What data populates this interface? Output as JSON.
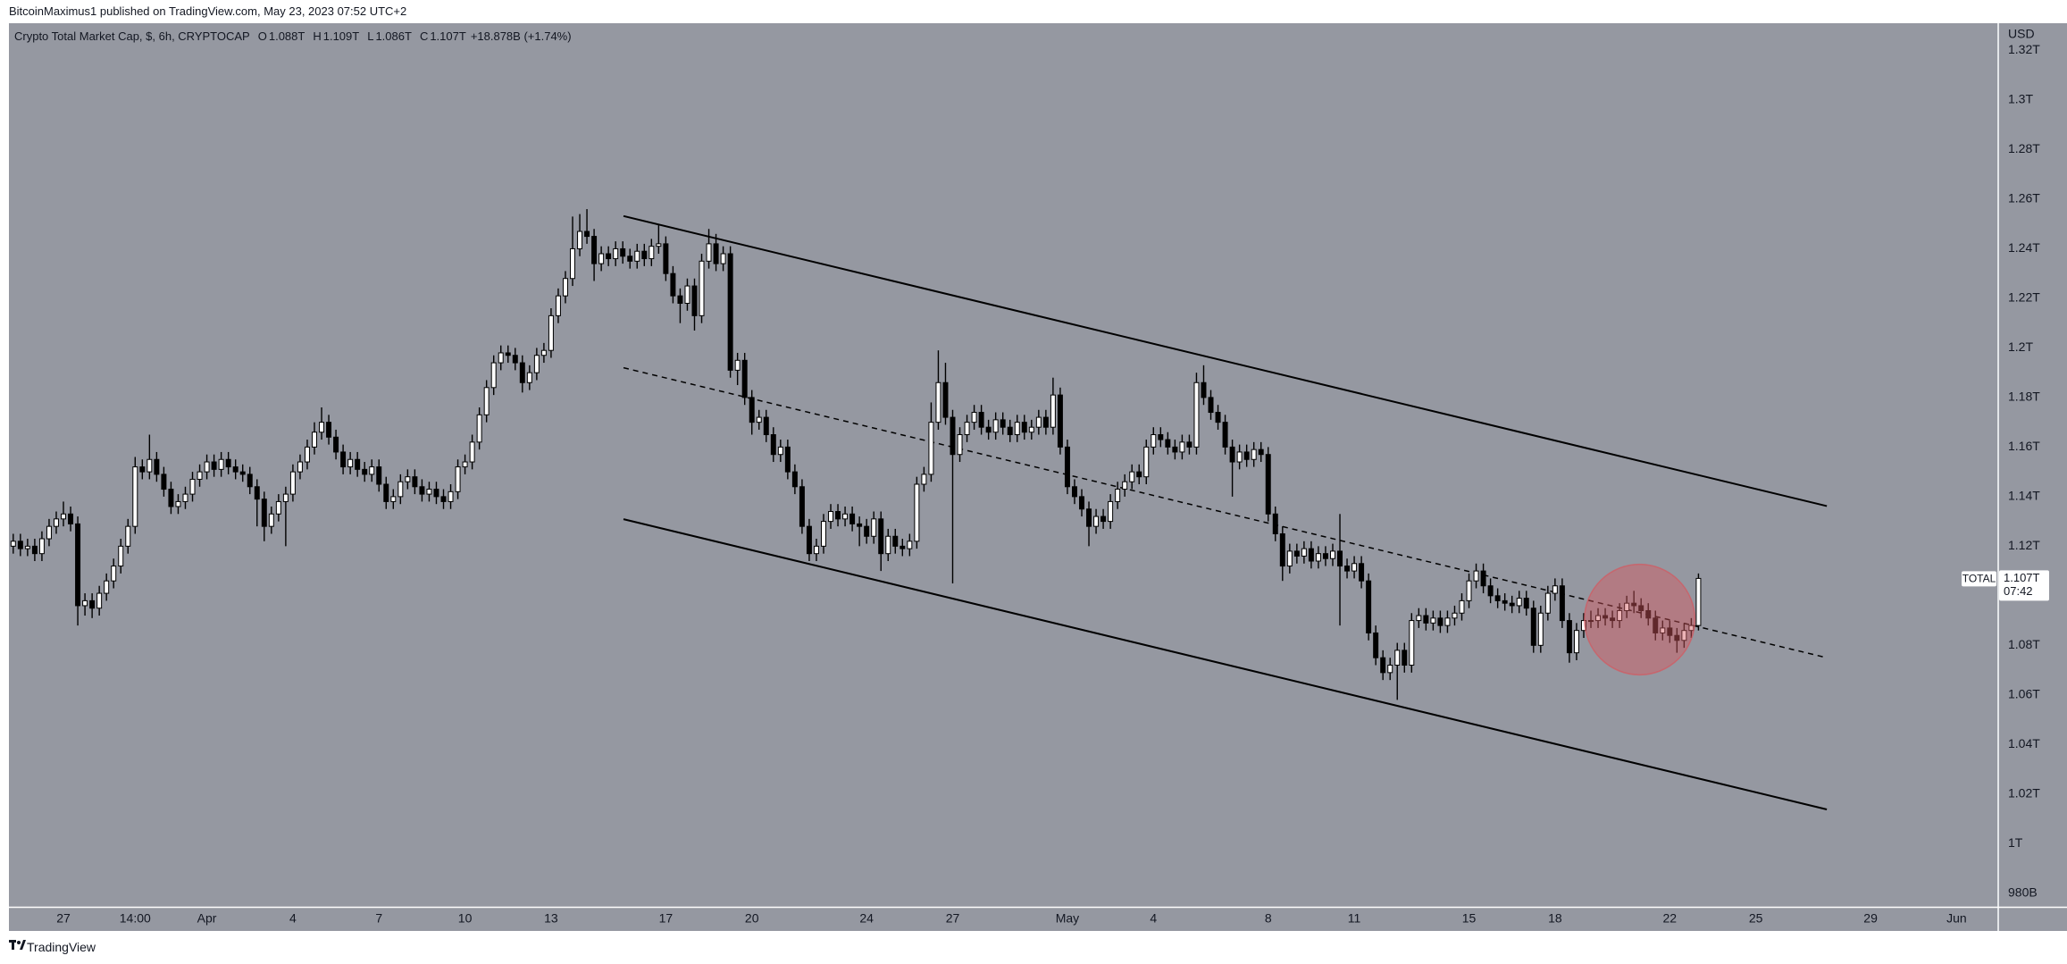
{
  "header": {
    "published": "BitcoinMaximus1 published on TradingView.com, May 23, 2023 07:52 UTC+2"
  },
  "footer": {
    "brand": "TradingView"
  },
  "chart_data": {
    "type": "candlestick",
    "title": "Crypto Total Market Cap, $, 6h, CRYPTOCAP",
    "legend_ohlc": [
      {
        "key": "O",
        "text": "1.088T"
      },
      {
        "key": "H",
        "text": "1.109T"
      },
      {
        "key": "L",
        "text": "1.086T"
      },
      {
        "key": "C",
        "text": "1.107T"
      }
    ],
    "change": "+18.878B (+1.74%)",
    "currency": "USD",
    "price_tag": {
      "symbol": "TOTAL",
      "price": "1.107T",
      "countdown": "07:42"
    },
    "up_color": "#ffffff",
    "down_color": "#000000",
    "wick_color": "#000000",
    "background": "#9598a1",
    "grid": false,
    "open": [
      1.12,
      1.122,
      1.119,
      1.12,
      1.117,
      1.123,
      1.128,
      1.131,
      1.133,
      1.129,
      1.096,
      1.098,
      1.095,
      1.101,
      1.106,
      1.112,
      1.12,
      1.128,
      1.152,
      1.15,
      1.155,
      1.149,
      1.143,
      1.136,
      1.138,
      1.141,
      1.147,
      1.15,
      1.154,
      1.151,
      1.155,
      1.152,
      1.15,
      1.149,
      1.144,
      1.139,
      1.128,
      1.133,
      1.138,
      1.141,
      1.15,
      1.154,
      1.16,
      1.166,
      1.17,
      1.164,
      1.158,
      1.152,
      1.155,
      1.151,
      1.149,
      1.152,
      1.145,
      1.138,
      1.14,
      1.146,
      1.148,
      1.144,
      1.141,
      1.143,
      1.14,
      1.138,
      1.142,
      1.152,
      1.154,
      1.162,
      1.173,
      1.184,
      1.194,
      1.198,
      1.197,
      1.194,
      1.186,
      1.19,
      1.197,
      1.199,
      1.213,
      1.221,
      1.228,
      1.24,
      1.247,
      1.245,
      1.234,
      1.238,
      1.236,
      1.24,
      1.237,
      1.235,
      1.239,
      1.236,
      1.241,
      1.242,
      1.23,
      1.221,
      1.218,
      1.225,
      1.213,
      1.235,
      1.242,
      1.234,
      1.238,
      1.191,
      1.195,
      1.18,
      1.17,
      1.172,
      1.165,
      1.157,
      1.16,
      1.15,
      1.144,
      1.128,
      1.117,
      1.12,
      1.13,
      1.134,
      1.131,
      1.133,
      1.129,
      1.128,
      1.124,
      1.131,
      1.117,
      1.124,
      1.12,
      1.119,
      1.122,
      1.145,
      1.149,
      1.17,
      1.186,
      1.172,
      1.157,
      1.165,
      1.17,
      1.174,
      1.168,
      1.166,
      1.171,
      1.168,
      1.165,
      1.17,
      1.166,
      1.168,
      1.172,
      1.168,
      1.181,
      1.16,
      1.144,
      1.14,
      1.135,
      1.128,
      1.132,
      1.13,
      1.138,
      1.143,
      1.146,
      1.15,
      1.148,
      1.16,
      1.165,
      1.163,
      1.16,
      1.158,
      1.162,
      1.16,
      1.186,
      1.18,
      1.174,
      1.17,
      1.16,
      1.154,
      1.158,
      1.155,
      1.159,
      1.157,
      1.133,
      1.125,
      1.112,
      1.118,
      1.116,
      1.119,
      1.114,
      1.117,
      1.115,
      1.118,
      1.112,
      1.11,
      1.113,
      1.106,
      1.085,
      1.075,
      1.069,
      1.072,
      1.078,
      1.072,
      1.09,
      1.092,
      1.089,
      1.091,
      1.088,
      1.091,
      1.093,
      1.098,
      1.106,
      1.11,
      1.104,
      1.1,
      1.098,
      1.097,
      1.096,
      1.099,
      1.095,
      1.08,
      1.093,
      1.101,
      1.104,
      1.09,
      1.077,
      1.086,
      1.09,
      1.09,
      1.092,
      1.091,
      1.09,
      1.094,
      1.097,
      1.096,
      1.094,
      1.091,
      1.085,
      1.087,
      1.084,
      1.082,
      1.086,
      1.088
    ],
    "high": [
      1.125,
      1.125,
      1.123,
      1.123,
      1.126,
      1.131,
      1.134,
      1.138,
      1.136,
      1.132,
      1.101,
      1.101,
      1.104,
      1.109,
      1.115,
      1.123,
      1.131,
      1.156,
      1.155,
      1.165,
      1.158,
      1.152,
      1.146,
      1.141,
      1.144,
      1.15,
      1.153,
      1.157,
      1.157,
      1.158,
      1.158,
      1.155,
      1.153,
      1.152,
      1.147,
      1.142,
      1.136,
      1.141,
      1.144,
      1.153,
      1.157,
      1.163,
      1.17,
      1.176,
      1.173,
      1.167,
      1.161,
      1.158,
      1.158,
      1.154,
      1.155,
      1.155,
      1.148,
      1.143,
      1.149,
      1.151,
      1.151,
      1.147,
      1.146,
      1.146,
      1.143,
      1.145,
      1.155,
      1.157,
      1.165,
      1.176,
      1.187,
      1.197,
      1.201,
      1.201,
      1.2,
      1.197,
      1.193,
      1.2,
      1.202,
      1.216,
      1.224,
      1.231,
      1.253,
      1.254,
      1.256,
      1.248,
      1.241,
      1.241,
      1.243,
      1.243,
      1.24,
      1.242,
      1.242,
      1.244,
      1.25,
      1.245,
      1.233,
      1.224,
      1.228,
      1.228,
      1.238,
      1.248,
      1.246,
      1.241,
      1.241,
      1.198,
      1.198,
      1.183,
      1.175,
      1.175,
      1.168,
      1.163,
      1.163,
      1.153,
      1.147,
      1.131,
      1.123,
      1.133,
      1.137,
      1.137,
      1.136,
      1.136,
      1.132,
      1.131,
      1.134,
      1.134,
      1.127,
      1.127,
      1.123,
      1.125,
      1.148,
      1.152,
      1.178,
      1.199,
      1.194,
      1.175,
      1.168,
      1.173,
      1.177,
      1.177,
      1.171,
      1.174,
      1.174,
      1.171,
      1.173,
      1.173,
      1.171,
      1.175,
      1.175,
      1.188,
      1.184,
      1.163,
      1.147,
      1.143,
      1.138,
      1.135,
      1.135,
      1.141,
      1.146,
      1.149,
      1.153,
      1.153,
      1.163,
      1.168,
      1.168,
      1.166,
      1.163,
      1.165,
      1.165,
      1.19,
      1.193,
      1.183,
      1.177,
      1.173,
      1.163,
      1.161,
      1.161,
      1.162,
      1.162,
      1.16,
      1.136,
      1.128,
      1.121,
      1.121,
      1.122,
      1.122,
      1.12,
      1.12,
      1.121,
      1.133,
      1.115,
      1.116,
      1.116,
      1.109,
      1.088,
      1.078,
      1.075,
      1.081,
      1.081,
      1.093,
      1.095,
      1.095,
      1.094,
      1.094,
      1.094,
      1.096,
      1.101,
      1.109,
      1.113,
      1.113,
      1.107,
      1.103,
      1.101,
      1.1,
      1.102,
      1.102,
      1.098,
      1.096,
      1.104,
      1.107,
      1.107,
      1.093,
      1.089,
      1.093,
      1.094,
      1.095,
      1.095,
      1.094,
      1.097,
      1.1,
      1.102,
      1.099,
      1.097,
      1.094,
      1.09,
      1.09,
      1.087,
      1.089,
      1.091,
      1.109
    ],
    "low": [
      1.117,
      1.116,
      1.116,
      1.114,
      1.114,
      1.12,
      1.125,
      1.128,
      1.126,
      1.088,
      1.092,
      1.091,
      1.092,
      1.098,
      1.103,
      1.109,
      1.117,
      1.125,
      1.147,
      1.147,
      1.146,
      1.14,
      1.133,
      1.133,
      1.135,
      1.138,
      1.144,
      1.147,
      1.148,
      1.148,
      1.149,
      1.147,
      1.146,
      1.141,
      1.128,
      1.122,
      1.125,
      1.13,
      1.12,
      1.138,
      1.147,
      1.151,
      1.157,
      1.163,
      1.161,
      1.155,
      1.149,
      1.149,
      1.148,
      1.146,
      1.146,
      1.142,
      1.135,
      1.135,
      1.137,
      1.143,
      1.141,
      1.138,
      1.138,
      1.137,
      1.135,
      1.135,
      1.139,
      1.149,
      1.151,
      1.159,
      1.17,
      1.181,
      1.191,
      1.194,
      1.191,
      1.182,
      1.183,
      1.187,
      1.194,
      1.196,
      1.21,
      1.218,
      1.225,
      1.237,
      1.242,
      1.227,
      1.231,
      1.233,
      1.233,
      1.234,
      1.232,
      1.232,
      1.233,
      1.233,
      1.238,
      1.227,
      1.218,
      1.21,
      1.215,
      1.207,
      1.21,
      1.232,
      1.231,
      1.231,
      1.188,
      1.185,
      1.177,
      1.165,
      1.167,
      1.162,
      1.154,
      1.154,
      1.147,
      1.141,
      1.125,
      1.114,
      1.114,
      1.117,
      1.127,
      1.128,
      1.128,
      1.126,
      1.12,
      1.121,
      1.121,
      1.11,
      1.114,
      1.117,
      1.116,
      1.116,
      1.119,
      1.142,
      1.146,
      1.167,
      1.169,
      1.105,
      1.154,
      1.162,
      1.167,
      1.165,
      1.163,
      1.163,
      1.165,
      1.162,
      1.162,
      1.163,
      1.163,
      1.165,
      1.165,
      1.165,
      1.157,
      1.141,
      1.137,
      1.132,
      1.12,
      1.125,
      1.127,
      1.127,
      1.135,
      1.14,
      1.143,
      1.145,
      1.145,
      1.157,
      1.16,
      1.157,
      1.155,
      1.155,
      1.157,
      1.157,
      1.177,
      1.171,
      1.167,
      1.157,
      1.14,
      1.151,
      1.152,
      1.152,
      1.154,
      1.13,
      1.122,
      1.106,
      1.109,
      1.113,
      1.113,
      1.111,
      1.111,
      1.112,
      1.112,
      1.088,
      1.107,
      1.107,
      1.103,
      1.082,
      1.072,
      1.066,
      1.066,
      1.058,
      1.069,
      1.069,
      1.087,
      1.086,
      1.086,
      1.085,
      1.085,
      1.088,
      1.09,
      1.095,
      1.103,
      1.101,
      1.097,
      1.095,
      1.094,
      1.093,
      1.093,
      1.092,
      1.077,
      1.077,
      1.09,
      1.098,
      1.087,
      1.073,
      1.074,
      1.083,
      1.087,
      1.087,
      1.088,
      1.087,
      1.087,
      1.091,
      1.093,
      1.091,
      1.088,
      1.082,
      1.082,
      1.081,
      1.077,
      1.079,
      1.083,
      1.086
    ],
    "close": [
      1.122,
      1.119,
      1.12,
      1.117,
      1.123,
      1.128,
      1.131,
      1.133,
      1.129,
      1.096,
      1.098,
      1.095,
      1.101,
      1.106,
      1.112,
      1.12,
      1.128,
      1.152,
      1.15,
      1.155,
      1.149,
      1.143,
      1.136,
      1.138,
      1.141,
      1.147,
      1.15,
      1.154,
      1.151,
      1.155,
      1.152,
      1.15,
      1.149,
      1.144,
      1.139,
      1.128,
      1.133,
      1.138,
      1.141,
      1.15,
      1.154,
      1.16,
      1.166,
      1.17,
      1.164,
      1.158,
      1.152,
      1.155,
      1.151,
      1.149,
      1.152,
      1.145,
      1.138,
      1.14,
      1.146,
      1.148,
      1.144,
      1.141,
      1.143,
      1.14,
      1.138,
      1.142,
      1.152,
      1.154,
      1.162,
      1.173,
      1.184,
      1.194,
      1.198,
      1.197,
      1.194,
      1.186,
      1.19,
      1.197,
      1.199,
      1.213,
      1.221,
      1.228,
      1.24,
      1.247,
      1.245,
      1.234,
      1.238,
      1.236,
      1.24,
      1.237,
      1.235,
      1.239,
      1.236,
      1.241,
      1.242,
      1.23,
      1.221,
      1.218,
      1.225,
      1.213,
      1.235,
      1.242,
      1.234,
      1.238,
      1.191,
      1.195,
      1.18,
      1.17,
      1.172,
      1.165,
      1.157,
      1.16,
      1.15,
      1.144,
      1.128,
      1.117,
      1.12,
      1.13,
      1.134,
      1.131,
      1.133,
      1.129,
      1.128,
      1.124,
      1.131,
      1.117,
      1.124,
      1.12,
      1.119,
      1.122,
      1.145,
      1.149,
      1.17,
      1.186,
      1.172,
      1.157,
      1.165,
      1.17,
      1.174,
      1.168,
      1.166,
      1.171,
      1.168,
      1.165,
      1.17,
      1.166,
      1.168,
      1.172,
      1.168,
      1.181,
      1.16,
      1.144,
      1.14,
      1.135,
      1.128,
      1.132,
      1.13,
      1.138,
      1.143,
      1.146,
      1.15,
      1.148,
      1.16,
      1.165,
      1.163,
      1.16,
      1.158,
      1.162,
      1.16,
      1.186,
      1.18,
      1.174,
      1.17,
      1.16,
      1.154,
      1.158,
      1.155,
      1.159,
      1.157,
      1.133,
      1.125,
      1.112,
      1.118,
      1.116,
      1.119,
      1.114,
      1.117,
      1.115,
      1.118,
      1.112,
      1.11,
      1.113,
      1.106,
      1.085,
      1.075,
      1.069,
      1.072,
      1.078,
      1.072,
      1.09,
      1.092,
      1.089,
      1.091,
      1.088,
      1.091,
      1.093,
      1.098,
      1.106,
      1.11,
      1.104,
      1.1,
      1.098,
      1.097,
      1.096,
      1.099,
      1.095,
      1.08,
      1.093,
      1.101,
      1.104,
      1.09,
      1.077,
      1.086,
      1.09,
      1.09,
      1.092,
      1.091,
      1.09,
      1.094,
      1.097,
      1.096,
      1.094,
      1.091,
      1.085,
      1.087,
      1.084,
      1.082,
      1.086,
      1.088,
      1.107
    ],
    "xlim": [
      -0.6,
      276.8
    ],
    "xticks": [
      {
        "value": 7,
        "label": "27"
      },
      {
        "value": 17,
        "label": "14:00"
      },
      {
        "value": 27,
        "label": "Apr"
      },
      {
        "value": 39,
        "label": "4"
      },
      {
        "value": 51,
        "label": "7"
      },
      {
        "value": 63,
        "label": "10"
      },
      {
        "value": 75,
        "label": "13"
      },
      {
        "value": 91,
        "label": "17"
      },
      {
        "value": 103,
        "label": "20"
      },
      {
        "value": 119,
        "label": "24"
      },
      {
        "value": 131,
        "label": "27"
      },
      {
        "value": 147,
        "label": "May"
      },
      {
        "value": 159,
        "label": "4"
      },
      {
        "value": 175,
        "label": "8"
      },
      {
        "value": 187,
        "label": "11"
      },
      {
        "value": 203,
        "label": "15"
      },
      {
        "value": 215,
        "label": "18"
      },
      {
        "value": 231,
        "label": "22"
      },
      {
        "value": 243,
        "label": "25"
      },
      {
        "value": 259,
        "label": "29"
      },
      {
        "value": 271,
        "label": "Jun"
      }
    ],
    "ylim": [
      0.9745,
      1.331
    ],
    "yticks": [
      {
        "value": 0.98,
        "label": "980B"
      },
      {
        "value": 1,
        "label": "1T"
      },
      {
        "value": 1.02,
        "label": "1.02T"
      },
      {
        "value": 1.04,
        "label": "1.04T"
      },
      {
        "value": 1.06,
        "label": "1.06T"
      },
      {
        "value": 1.08,
        "label": "1.08T"
      },
      {
        "value": 1.1,
        "label": "1.1T"
      },
      {
        "value": 1.12,
        "label": "1.12T"
      },
      {
        "value": 1.14,
        "label": "1.14T"
      },
      {
        "value": 1.16,
        "label": "1.16T"
      },
      {
        "value": 1.18,
        "label": "1.18T"
      },
      {
        "value": 1.2,
        "label": "1.2T"
      },
      {
        "value": 1.22,
        "label": "1.22T"
      },
      {
        "value": 1.24,
        "label": "1.24T"
      },
      {
        "value": 1.26,
        "label": "1.26T"
      },
      {
        "value": 1.28,
        "label": "1.28T"
      },
      {
        "value": 1.3,
        "label": "1.3T"
      },
      {
        "value": 1.32,
        "label": "1.32T"
      }
    ],
    "channel": {
      "color": "#000000",
      "upper": {
        "x": [
          85.1,
          252.9
        ],
        "y": [
          1.2532,
          1.1362
        ]
      },
      "middle": {
        "x": [
          85.1,
          252.9
        ],
        "y": [
          1.192,
          1.075
        ]
      },
      "lower": {
        "x": [
          85.1,
          252.9
        ],
        "y": [
          1.1309,
          1.0138
        ]
      }
    },
    "highlight": {
      "x": 226.8,
      "y": 1.0904,
      "rx": 7.7,
      "ry": 0.0223,
      "color": "#d4595f"
    }
  }
}
